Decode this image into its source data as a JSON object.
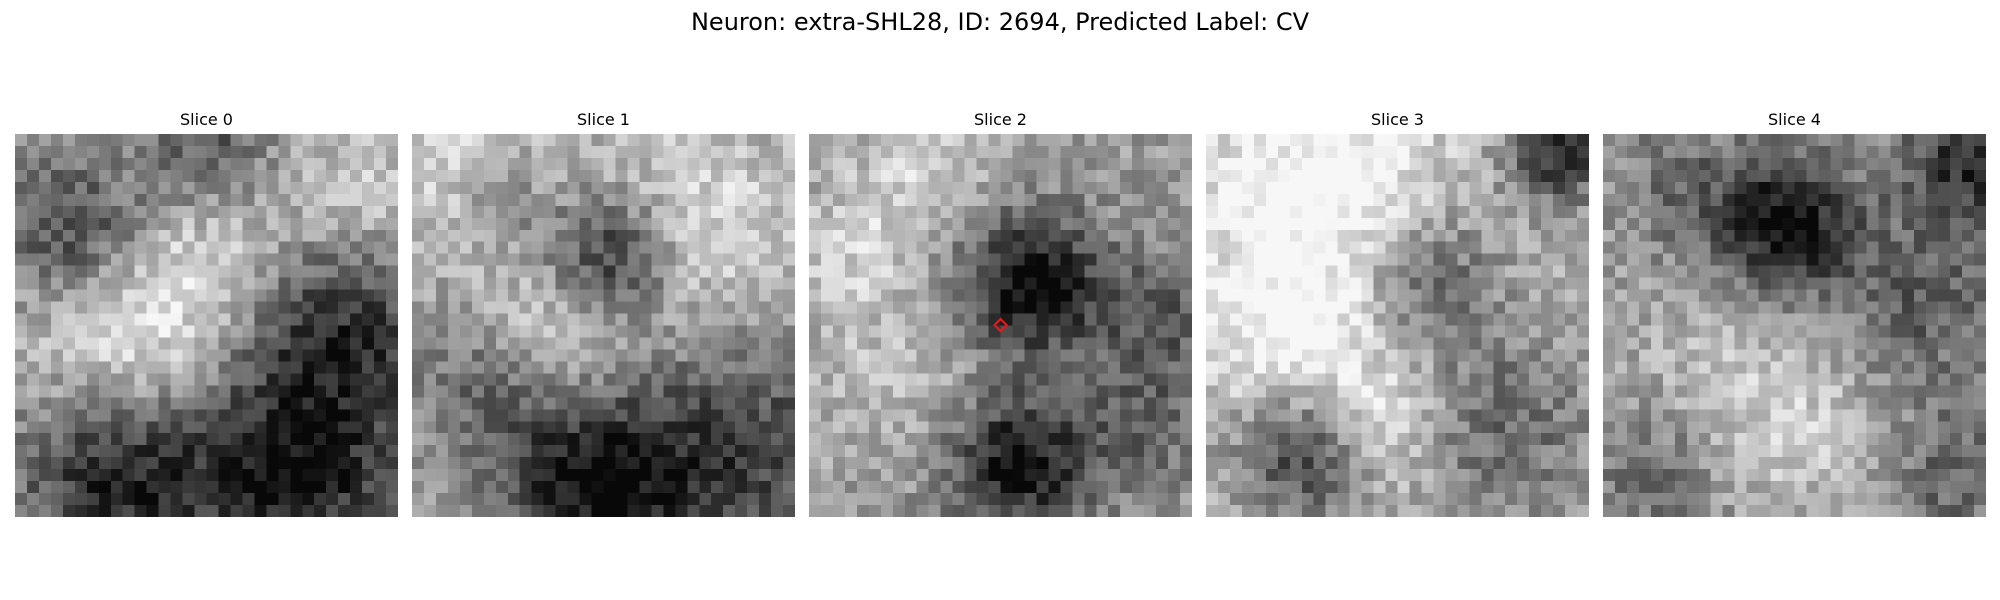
{
  "figure": {
    "title": "Neuron: extra-SHL28, ID: 2694, Predicted Label: CV"
  },
  "panels": [
    {
      "title": "Slice 0"
    },
    {
      "title": "Slice 1"
    },
    {
      "title": "Slice 2"
    },
    {
      "title": "Slice 3"
    },
    {
      "title": "Slice 4"
    }
  ],
  "colormap": "gray",
  "marker": {
    "panel_index": 2,
    "shape": "diamond",
    "color": "#e31a1c"
  }
}
